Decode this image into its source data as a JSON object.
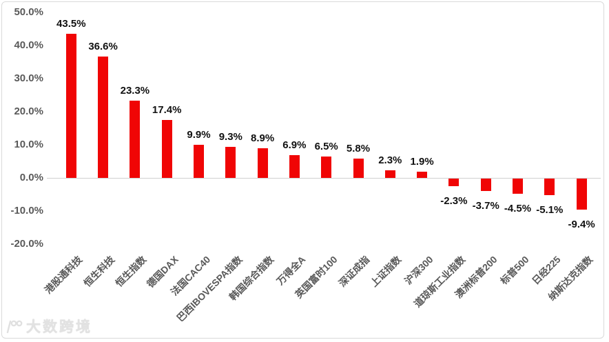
{
  "chart_data": {
    "type": "bar",
    "title": "",
    "xlabel": "",
    "ylabel": "",
    "categories": [
      "港股通科技",
      "恒生科技",
      "恒生指数",
      "德国DAX",
      "法国CAC40",
      "巴西IBOVESPA指数",
      "韩国综合指数",
      "万得全A",
      "英国富时100",
      "深证成指",
      "上证指数",
      "沪深300",
      "道琼斯工业指数",
      "澳洲标普200",
      "标普500",
      "日经225",
      "纳斯达克指数"
    ],
    "values": [
      43.5,
      36.6,
      23.3,
      17.4,
      9.9,
      9.3,
      8.9,
      6.9,
      6.5,
      5.8,
      2.3,
      1.9,
      -2.3,
      -3.7,
      -4.5,
      -5.1,
      -9.4
    ],
    "data_labels": [
      "43.5%",
      "36.6%",
      "23.3%",
      "17.4%",
      "9.9%",
      "9.3%",
      "8.9%",
      "6.9%",
      "6.5%",
      "5.8%",
      "2.3%",
      "1.9%",
      "-2.3%",
      "-3.7%",
      "-4.5%",
      "-5.1%",
      "-9.4%"
    ],
    "y_ticks": [
      {
        "label": "50.0%",
        "value": 50
      },
      {
        "label": "40.0%",
        "value": 40
      },
      {
        "label": "30.0%",
        "value": 30
      },
      {
        "label": "20.0%",
        "value": 20
      },
      {
        "label": "10.0%",
        "value": 10
      },
      {
        "label": "0.0%",
        "value": 0
      },
      {
        "label": "-10.0%",
        "value": -10
      },
      {
        "label": "-20.0%",
        "value": -20
      }
    ],
    "ylim": [
      -20,
      50
    ],
    "grid": false,
    "legend": false,
    "bar_color": "#f00505",
    "axis_text_color": "#595959",
    "label_text_color": "#111111",
    "zero_line_color": "#d0d0d0"
  },
  "watermark": {
    "text": "大数跨境",
    "logo_icon": "dashu-kuajing-logo-icon"
  }
}
